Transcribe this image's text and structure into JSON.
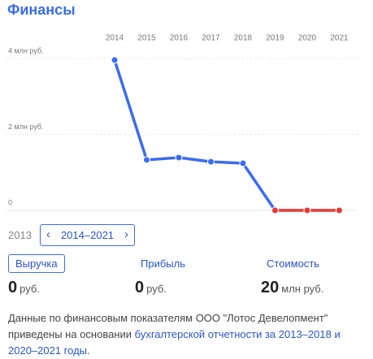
{
  "chart_data": {
    "type": "line",
    "title": "Финансы",
    "x": [
      "2014",
      "2015",
      "2016",
      "2017",
      "2018",
      "2019",
      "2020",
      "2021"
    ],
    "series": [
      {
        "values": [
          3.96,
          1.33,
          1.39,
          1.28,
          1.24,
          0,
          0,
          0
        ],
        "colors": [
          "#3b6cf0",
          "#3b6cf0",
          "#3b6cf0",
          "#3b6cf0",
          "#3b6cf0",
          "#e53935",
          "#e53935",
          "#e53935"
        ]
      }
    ],
    "ylim": [
      0,
      4
    ],
    "yticks": [
      0,
      {
        "value": 2,
        "label": "2 млн руб."
      },
      {
        "value": 4,
        "label": "4 млн руб."
      }
    ],
    "grid": true
  },
  "period": {
    "previous": "2013",
    "current": "2014–2021"
  },
  "metrics": [
    {
      "label": "Выручка",
      "value": 0,
      "unit": "руб."
    },
    {
      "label": "Прибыль",
      "value": 0,
      "unit": "руб."
    },
    {
      "label": "Стоимость",
      "value": 20,
      "unit": "млн руб."
    }
  ],
  "footnote": {
    "text": "Данные по финансовым показателям ООО \"Лотос Девелопмент\" приведены на основании ",
    "link": "бухгалтерской отчетности за 2013–2018 и 2020–2021 годы",
    "end": "."
  }
}
